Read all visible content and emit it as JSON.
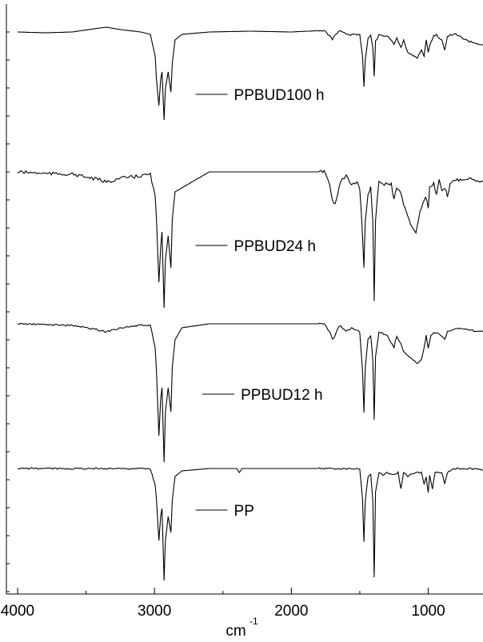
{
  "chart_data": {
    "type": "line",
    "title": "",
    "xlabel": "cm",
    "xlabel_superscript": "-1",
    "ylabel": "",
    "xlim": [
      4000,
      600
    ],
    "x_reversed": true,
    "x_ticks": [
      4000,
      3000,
      2000,
      1000
    ],
    "x_tick_labels": [
      "4000",
      "3000",
      "2000",
      "1000"
    ],
    "grid": false,
    "legend": "inline labels",
    "colors": {
      "line": "#000000",
      "axis": "#000000"
    },
    "series": [
      {
        "name": "PPBUD100 h",
        "baseline_y": 40,
        "points": [
          [
            4000,
            0
          ],
          [
            3800,
            1
          ],
          [
            3600,
            0
          ],
          [
            3400,
            -5
          ],
          [
            3350,
            -6
          ],
          [
            3250,
            -3
          ],
          [
            3100,
            0
          ],
          [
            3030,
            3
          ],
          [
            2995,
            30
          ],
          [
            2985,
            60
          ],
          [
            2968,
            92
          ],
          [
            2955,
            60
          ],
          [
            2945,
            50
          ],
          [
            2930,
            110
          ],
          [
            2920,
            70
          ],
          [
            2900,
            50
          ],
          [
            2880,
            75
          ],
          [
            2870,
            40
          ],
          [
            2850,
            10
          ],
          [
            2800,
            3
          ],
          [
            2600,
            0
          ],
          [
            2300,
            -1
          ],
          [
            2000,
            0
          ],
          [
            1760,
            -2
          ],
          [
            1720,
            5
          ],
          [
            1700,
            10
          ],
          [
            1680,
            3
          ],
          [
            1640,
            -2
          ],
          [
            1600,
            3
          ],
          [
            1500,
            4
          ],
          [
            1480,
            30
          ],
          [
            1470,
            68
          ],
          [
            1460,
            35
          ],
          [
            1440,
            8
          ],
          [
            1420,
            4
          ],
          [
            1405,
            20
          ],
          [
            1395,
            55
          ],
          [
            1385,
            12
          ],
          [
            1360,
            4
          ],
          [
            1300,
            5
          ],
          [
            1250,
            15
          ],
          [
            1230,
            8
          ],
          [
            1200,
            20
          ],
          [
            1180,
            10
          ],
          [
            1150,
            25
          ],
          [
            1110,
            30
          ],
          [
            1080,
            32
          ],
          [
            1050,
            22
          ],
          [
            1030,
            30
          ],
          [
            1015,
            10
          ],
          [
            1000,
            25
          ],
          [
            980,
            12
          ],
          [
            960,
            5
          ],
          [
            940,
            4
          ],
          [
            900,
            10
          ],
          [
            880,
            22
          ],
          [
            860,
            6
          ],
          [
            840,
            4
          ],
          [
            800,
            3
          ],
          [
            700,
            12
          ],
          [
            600,
            16
          ]
        ],
        "label_x": 2700,
        "label_offset": 78
      },
      {
        "name": "PPBUD24 h",
        "baseline_y": 215,
        "points": [
          [
            4000,
            0
          ],
          [
            3800,
            2
          ],
          [
            3600,
            3
          ],
          [
            3400,
            10
          ],
          [
            3350,
            13
          ],
          [
            3250,
            8
          ],
          [
            3100,
            5
          ],
          [
            3030,
            3
          ],
          [
            2995,
            30
          ],
          [
            2985,
            60
          ],
          [
            2968,
            138
          ],
          [
            2955,
            95
          ],
          [
            2945,
            75
          ],
          [
            2930,
            170
          ],
          [
            2920,
            110
          ],
          [
            2900,
            80
          ],
          [
            2880,
            120
          ],
          [
            2870,
            60
          ],
          [
            2850,
            25
          ],
          [
            2800,
            20
          ],
          [
            2600,
            0
          ],
          [
            2300,
            0
          ],
          [
            2000,
            0
          ],
          [
            1760,
            0
          ],
          [
            1720,
            15
          ],
          [
            1700,
            35
          ],
          [
            1680,
            40
          ],
          [
            1660,
            25
          ],
          [
            1640,
            12
          ],
          [
            1600,
            5
          ],
          [
            1560,
            18
          ],
          [
            1520,
            12
          ],
          [
            1500,
            20
          ],
          [
            1480,
            80
          ],
          [
            1470,
            120
          ],
          [
            1460,
            60
          ],
          [
            1440,
            30
          ],
          [
            1420,
            20
          ],
          [
            1405,
            60
          ],
          [
            1395,
            160
          ],
          [
            1385,
            60
          ],
          [
            1360,
            10
          ],
          [
            1330,
            15
          ],
          [
            1300,
            15
          ],
          [
            1270,
            15
          ],
          [
            1250,
            35
          ],
          [
            1230,
            20
          ],
          [
            1200,
            25
          ],
          [
            1180,
            40
          ],
          [
            1150,
            55
          ],
          [
            1120,
            70
          ],
          [
            1090,
            75
          ],
          [
            1060,
            50
          ],
          [
            1040,
            40
          ],
          [
            1020,
            30
          ],
          [
            1000,
            45
          ],
          [
            990,
            20
          ],
          [
            960,
            15
          ],
          [
            940,
            30
          ],
          [
            920,
            10
          ],
          [
            900,
            25
          ],
          [
            880,
            20
          ],
          [
            860,
            30
          ],
          [
            840,
            15
          ],
          [
            800,
            10
          ],
          [
            700,
            8
          ],
          [
            600,
            12
          ]
        ],
        "label_x": 2700,
        "label_offset": 92
      },
      {
        "name": "PPBUD12 h",
        "baseline_y": 405,
        "points": [
          [
            4000,
            0
          ],
          [
            3800,
            1
          ],
          [
            3600,
            2
          ],
          [
            3400,
            8
          ],
          [
            3350,
            10
          ],
          [
            3250,
            5
          ],
          [
            3100,
            2
          ],
          [
            3030,
            2
          ],
          [
            2995,
            30
          ],
          [
            2985,
            60
          ],
          [
            2968,
            140
          ],
          [
            2955,
            95
          ],
          [
            2945,
            80
          ],
          [
            2930,
            173
          ],
          [
            2920,
            110
          ],
          [
            2900,
            80
          ],
          [
            2880,
            110
          ],
          [
            2870,
            55
          ],
          [
            2850,
            20
          ],
          [
            2800,
            5
          ],
          [
            2600,
            0
          ],
          [
            2300,
            0
          ],
          [
            2000,
            0
          ],
          [
            1760,
            0
          ],
          [
            1720,
            10
          ],
          [
            1700,
            20
          ],
          [
            1680,
            15
          ],
          [
            1660,
            5
          ],
          [
            1640,
            3
          ],
          [
            1600,
            10
          ],
          [
            1560,
            5
          ],
          [
            1500,
            10
          ],
          [
            1480,
            60
          ],
          [
            1470,
            110
          ],
          [
            1460,
            55
          ],
          [
            1440,
            20
          ],
          [
            1420,
            15
          ],
          [
            1405,
            45
          ],
          [
            1395,
            120
          ],
          [
            1385,
            40
          ],
          [
            1360,
            10
          ],
          [
            1300,
            15
          ],
          [
            1250,
            30
          ],
          [
            1230,
            15
          ],
          [
            1200,
            25
          ],
          [
            1180,
            35
          ],
          [
            1150,
            40
          ],
          [
            1110,
            45
          ],
          [
            1080,
            50
          ],
          [
            1050,
            45
          ],
          [
            1030,
            30
          ],
          [
            1015,
            15
          ],
          [
            1000,
            30
          ],
          [
            980,
            15
          ],
          [
            960,
            10
          ],
          [
            900,
            15
          ],
          [
            880,
            20
          ],
          [
            860,
            10
          ],
          [
            800,
            5
          ],
          [
            700,
            8
          ],
          [
            600,
            10
          ]
        ],
        "label_x": 2650,
        "label_offset": 88
      },
      {
        "name": "PP",
        "baseline_y": 586,
        "points": [
          [
            4000,
            0
          ],
          [
            3500,
            0
          ],
          [
            3100,
            0
          ],
          [
            3030,
            1
          ],
          [
            2995,
            20
          ],
          [
            2985,
            40
          ],
          [
            2968,
            90
          ],
          [
            2955,
            60
          ],
          [
            2945,
            50
          ],
          [
            2930,
            140
          ],
          [
            2920,
            90
          ],
          [
            2900,
            60
          ],
          [
            2880,
            80
          ],
          [
            2870,
            40
          ],
          [
            2850,
            10
          ],
          [
            2800,
            3
          ],
          [
            2600,
            0
          ],
          [
            2400,
            0
          ],
          [
            2380,
            5
          ],
          [
            2360,
            0
          ],
          [
            2000,
            0
          ],
          [
            1760,
            0
          ],
          [
            1500,
            0
          ],
          [
            1480,
            40
          ],
          [
            1470,
            92
          ],
          [
            1460,
            40
          ],
          [
            1440,
            10
          ],
          [
            1420,
            8
          ],
          [
            1405,
            40
          ],
          [
            1395,
            135
          ],
          [
            1385,
            30
          ],
          [
            1360,
            5
          ],
          [
            1330,
            8
          ],
          [
            1300,
            5
          ],
          [
            1250,
            8
          ],
          [
            1220,
            5
          ],
          [
            1200,
            25
          ],
          [
            1180,
            5
          ],
          [
            1150,
            10
          ],
          [
            1100,
            5
          ],
          [
            1050,
            5
          ],
          [
            1030,
            20
          ],
          [
            1015,
            10
          ],
          [
            1000,
            30
          ],
          [
            990,
            8
          ],
          [
            970,
            25
          ],
          [
            950,
            5
          ],
          [
            900,
            5
          ],
          [
            880,
            20
          ],
          [
            860,
            5
          ],
          [
            840,
            3
          ],
          [
            800,
            0
          ],
          [
            700,
            0
          ],
          [
            600,
            2
          ]
        ],
        "label_x": 2700,
        "label_offset": 52
      }
    ]
  }
}
